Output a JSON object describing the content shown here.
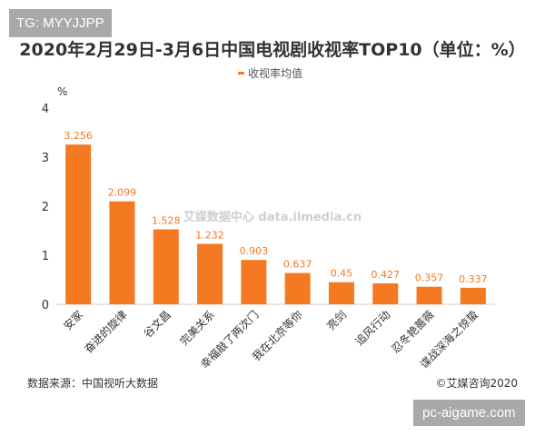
{
  "watermark_tag": "TG: MYYJJPP",
  "site_badge": "pc-aigame.com",
  "source": "数据来源：中国视听大数据",
  "copyright": "©艾媒咨询2020",
  "logo_watermark": "艾媒数据中心 data.iimedia.cn",
  "chart_data": {
    "type": "bar",
    "title": "2020年2月29日-3月6日中国电视剧收视率TOP10（单位：%）",
    "ylabel": "%",
    "ylim": [
      0,
      4
    ],
    "yticks": [
      "0",
      "1",
      "2",
      "3",
      "4"
    ],
    "legend": "top",
    "grid": false,
    "series": [
      {
        "name": "收视率均值",
        "color": "#f47920"
      }
    ],
    "categories": [
      "安家",
      "奋进的旋律",
      "谷文昌",
      "完美关系",
      "幸福敲了两次门",
      "我在北京等你",
      "亮剑",
      "追风行动",
      "忍冬艳蔷薇",
      "谍战深海之惊蛰"
    ],
    "values": [
      3.256,
      2.099,
      1.528,
      1.232,
      0.903,
      0.637,
      0.45,
      0.427,
      0.357,
      0.337
    ],
    "value_labels": [
      "3.256",
      "2.099",
      "1.528",
      "1.232",
      "0.903",
      "0.637",
      "0.45",
      "0.427",
      "0.357",
      "0.337"
    ]
  }
}
